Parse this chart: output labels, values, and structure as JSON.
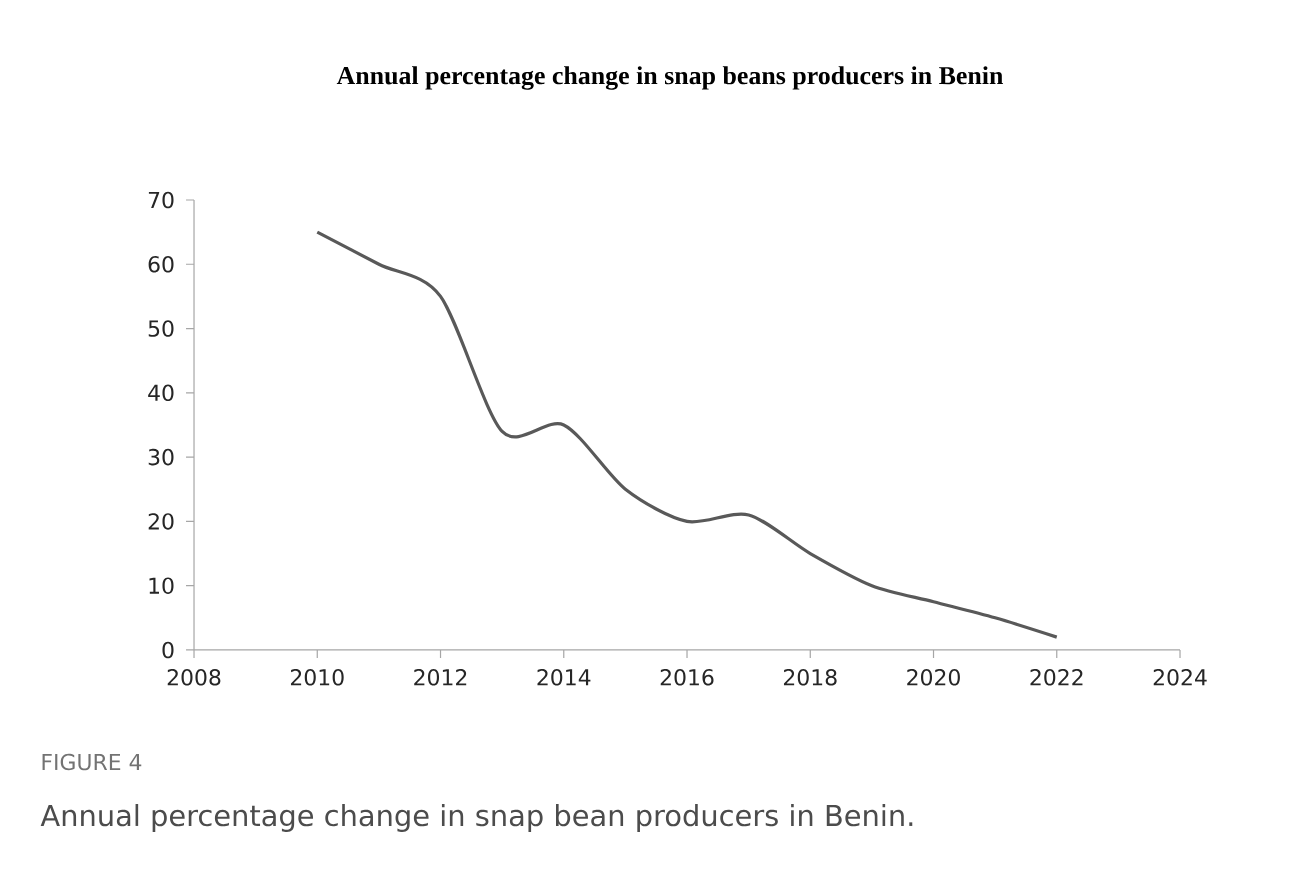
{
  "chart_data": {
    "type": "line",
    "title": "Annual percentage change in snap beans producers in Benin",
    "x": [
      2010,
      2011,
      2012,
      2013,
      2014,
      2015,
      2016,
      2017,
      2018,
      2019,
      2020,
      2021,
      2022
    ],
    "values": [
      65,
      60,
      55,
      34,
      35,
      25,
      20,
      21,
      15,
      10,
      7.5,
      5,
      2
    ],
    "color": "#595959",
    "xlim": [
      2008,
      2024
    ],
    "xticks": [
      2008,
      2010,
      2012,
      2014,
      2016,
      2018,
      2020,
      2022,
      2024
    ],
    "ylim": [
      0,
      70
    ],
    "yticks": [
      0,
      10,
      20,
      30,
      40,
      50,
      60,
      70
    ],
    "annotations": [
      "FIGURE 4",
      "Annual percentage change in snap bean producers in Benin."
    ]
  }
}
